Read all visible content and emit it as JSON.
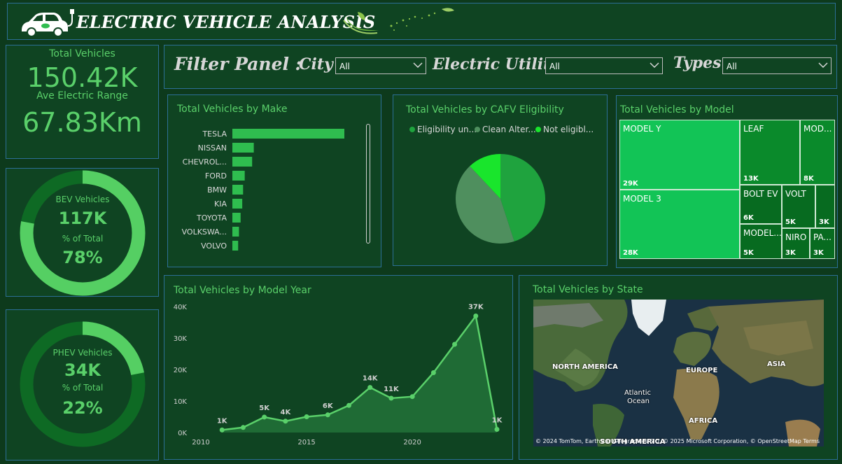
{
  "header": {
    "title": "ELECTRIC VEHICLE ANALYSIS"
  },
  "kpi": {
    "total_label": "Total Vehicles",
    "total_value": "150.42K",
    "range_label": "Ave Electric Range",
    "range_value": "67.83Km"
  },
  "bev": {
    "label": "BEV Vehicles",
    "value": "117K",
    "pct_label": "% of Total",
    "pct": "78%",
    "fraction": 0.78
  },
  "phev": {
    "label": "PHEV Vehicles",
    "value": "34K",
    "pct_label": "% of Total",
    "pct": "22%",
    "fraction": 0.22
  },
  "filters": {
    "panel_label": "Filter Panel :",
    "city_label": "City",
    "city_value": "All",
    "utility_label": "Electric Utility",
    "utility_value": "All",
    "types_label": "Types",
    "types_value": "All"
  },
  "colors": {
    "bar": "#2fbd4f",
    "accent": "#5ad06a",
    "pie_1": "#1fa33e",
    "pie_2": "#4f8f5e",
    "pie_3": "#19e52c",
    "area": "#1f6b35",
    "line": "#5ad06a"
  },
  "make_chart": {
    "title": "Total Vehicles by Make",
    "chart_data": {
      "type": "bar",
      "orientation": "horizontal",
      "categories": [
        "TESLA",
        "NISSAN",
        "CHEVROL...",
        "FORD",
        "BMW",
        "KIA",
        "TOYOTA",
        "VOLKSWA...",
        "VOLVO"
      ],
      "values": [
        68,
        13,
        12,
        7.5,
        6.5,
        6,
        5,
        4,
        3.5
      ]
    }
  },
  "cafv_chart": {
    "title": "Total Vehicles by CAFV Eligibility",
    "legend": [
      "Eligibility un...",
      "Clean Alter...",
      "Not eligibl..."
    ],
    "chart_data": {
      "type": "pie",
      "categories": [
        "Eligibility un...",
        "Clean Alter...",
        "Not eligibl..."
      ],
      "values": [
        45,
        43,
        12
      ]
    }
  },
  "model_chart": {
    "title": "Total Vehicles by Model",
    "chart_data": {
      "type": "treemap",
      "items": [
        {
          "name": "MODEL Y",
          "value_label": "29K",
          "value": 29
        },
        {
          "name": "MODEL 3",
          "value_label": "28K",
          "value": 28
        },
        {
          "name": "LEAF",
          "value_label": "13K",
          "value": 13
        },
        {
          "name": "MOD...",
          "value_label": "8K",
          "value": 8
        },
        {
          "name": "BOLT EV",
          "value_label": "6K",
          "value": 6
        },
        {
          "name": "VOLT",
          "value_label": "5K",
          "value": 5
        },
        {
          "name": "",
          "value_label": "3K",
          "value": 3
        },
        {
          "name": "MODEL...",
          "value_label": "5K",
          "value": 5
        },
        {
          "name": "NIRO",
          "value_label": "3K",
          "value": 3
        },
        {
          "name": "PA...",
          "value_label": "3K",
          "value": 3
        }
      ]
    }
  },
  "year_chart": {
    "title": "Total Vehicles by Model Year",
    "chart_data": {
      "type": "area",
      "x": [
        2011,
        2012,
        2013,
        2014,
        2015,
        2016,
        2017,
        2018,
        2019,
        2020,
        2021,
        2022,
        2023,
        2024
      ],
      "y": [
        0.8,
        1.6,
        4.9,
        3.6,
        5.0,
        5.6,
        8.6,
        14.3,
        10.9,
        11.4,
        19.0,
        28.0,
        37.0,
        1.0
      ],
      "point_labels": [
        {
          "x": 2011,
          "text": "1K"
        },
        {
          "x": 2013,
          "text": "5K"
        },
        {
          "x": 2014,
          "text": "4K"
        },
        {
          "x": 2016,
          "text": "6K"
        },
        {
          "x": 2018,
          "text": "14K"
        },
        {
          "x": 2019,
          "text": "11K"
        },
        {
          "x": 2023,
          "text": "37K"
        },
        {
          "x": 2024,
          "text": "1K"
        }
      ],
      "xlim": [
        2010,
        2024
      ],
      "ylim": [
        0,
        40
      ],
      "xticks": [
        {
          "value": 2010,
          "label": "2010"
        },
        {
          "value": 2015,
          "label": "2015"
        },
        {
          "value": 2020,
          "label": "2020"
        }
      ],
      "yticks": [
        {
          "value": 0,
          "label": "0K"
        },
        {
          "value": 10,
          "label": "10K"
        },
        {
          "value": 20,
          "label": "20K"
        },
        {
          "value": 30,
          "label": "30K"
        },
        {
          "value": 40,
          "label": "40K"
        }
      ]
    }
  },
  "state_map": {
    "title": "Total Vehicles by State",
    "labels": [
      "NORTH AMERICA",
      "EUROPE",
      "ASIA",
      "Atlantic",
      "Ocean",
      "AFRICA",
      "SOUTH AMERICA"
    ],
    "copyright": "© 2024 TomTom, Earthstar Geographics SIO, © 2025 Microsoft Corporation, © OpenStreetMap  Terms"
  }
}
